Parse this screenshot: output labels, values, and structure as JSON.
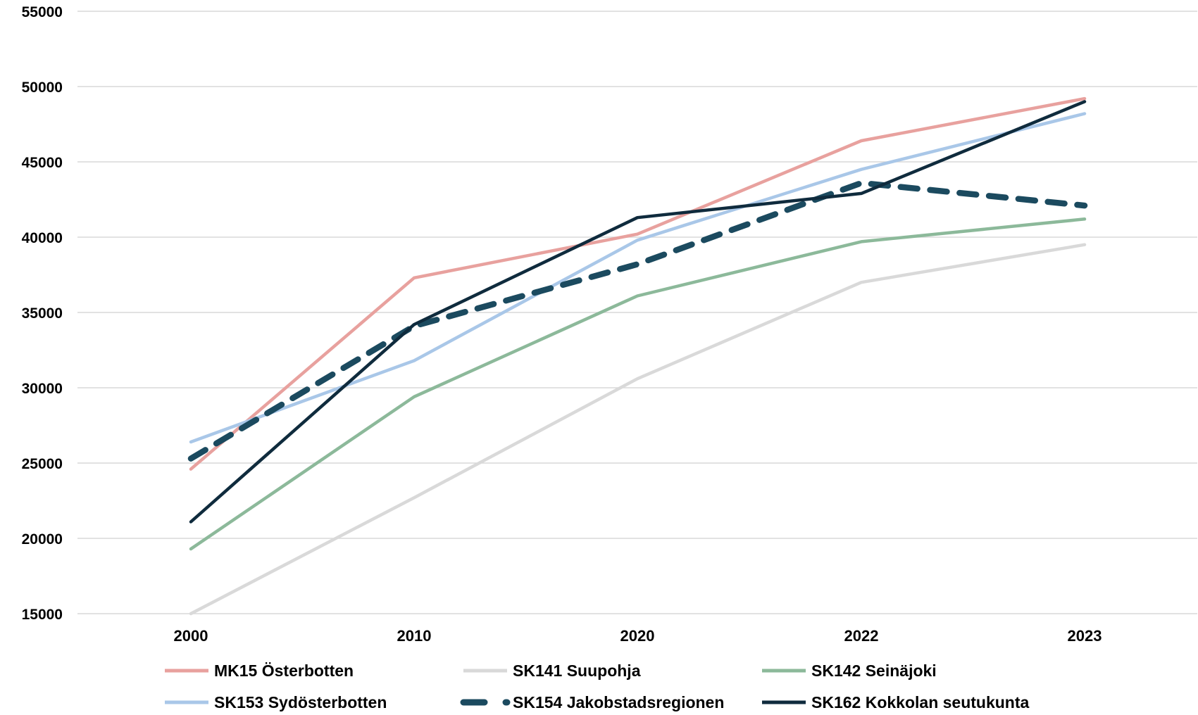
{
  "chart_data": {
    "type": "line",
    "title": "",
    "xlabel": "",
    "ylabel": "",
    "categories": [
      "2000",
      "2010",
      "2020",
      "2022",
      "2023"
    ],
    "ylim": [
      15000,
      55000
    ],
    "yticks": [
      15000,
      20000,
      25000,
      30000,
      35000,
      40000,
      45000,
      50000,
      55000
    ],
    "grid": "horizontal",
    "legend_position": "bottom",
    "series": [
      {
        "name": "MK15 Österbotten",
        "color": "#e8a19e",
        "dash": "solid",
        "values": [
          24600,
          37300,
          40200,
          46400,
          49200
        ]
      },
      {
        "name": "SK141 Suupohja",
        "color": "#d9d9d9",
        "dash": "solid",
        "values": [
          15000,
          22700,
          30600,
          37000,
          39500
        ]
      },
      {
        "name": "SK142 Seinäjoki",
        "color": "#8cb99a",
        "dash": "solid",
        "values": [
          19300,
          29400,
          36100,
          39700,
          41200
        ]
      },
      {
        "name": "SK153 Sydösterbotten",
        "color": "#a9c7e8",
        "dash": "solid",
        "values": [
          26400,
          31800,
          39800,
          44500,
          48200
        ]
      },
      {
        "name": "SK154 Jakobstadsregionen",
        "color": "#1b4a5f",
        "dash": "dashed",
        "values": [
          25300,
          34100,
          38200,
          43600,
          42100
        ]
      },
      {
        "name": "SK162 Kokkolan seutukunta",
        "color": "#0f2b3d",
        "dash": "solid",
        "values": [
          21100,
          34200,
          41300,
          42900,
          49000
        ]
      }
    ]
  }
}
